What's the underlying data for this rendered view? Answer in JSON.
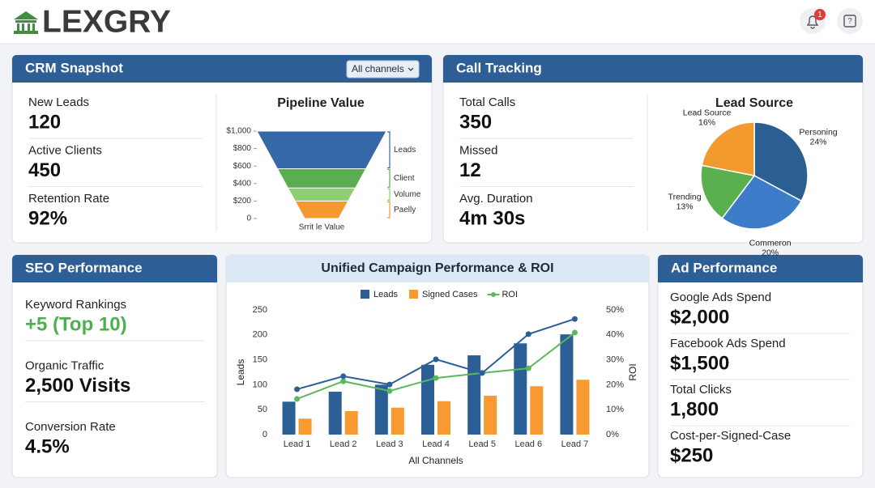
{
  "header": {
    "logo": "LEXGRY",
    "notifications": 1
  },
  "crm": {
    "title": "CRM Snapshot",
    "filter": "All channels",
    "metrics": [
      {
        "label": "New Leads",
        "value": "120"
      },
      {
        "label": "Active Clients",
        "value": "450"
      },
      {
        "label": "Retention Rate",
        "value": "92%"
      }
    ]
  },
  "call_tracking": {
    "title": "Call Tracking",
    "metrics": [
      {
        "label": "Total Calls",
        "value": "350"
      },
      {
        "label": "Missed",
        "value": "12"
      },
      {
        "label": "Avg. Duration",
        "value": "4m 30s"
      }
    ]
  },
  "seo": {
    "title": "SEO Performance",
    "metrics": [
      {
        "label": "Keyword Rankings",
        "value": "+5 (Top 10)"
      },
      {
        "label": "Organic Traffic",
        "value": "2,500 Visits"
      },
      {
        "label": "Conversion Rate",
        "value": "4.5%"
      }
    ]
  },
  "ads": {
    "title": "Ad Performance",
    "metrics": [
      {
        "label": "Google Ads Spend",
        "value": "$2,000"
      },
      {
        "label": "Facebook Ads Spend",
        "value": "$1,500"
      },
      {
        "label": "Total Clicks",
        "value": "1,800"
      },
      {
        "label": "Cost-per-Signed-Case",
        "value": "$250"
      }
    ]
  },
  "chart_data": [
    {
      "type": "funnel",
      "title": "Pipeline Value",
      "xlabel": "Srrit le Value",
      "categories": [
        "Leads",
        "Client",
        "Volume",
        "Paelly"
      ],
      "values": [
        430,
        220,
        150,
        200
      ],
      "colors": [
        "#3568a6",
        "#5aad50",
        "#8fcf73",
        "#f5992f"
      ],
      "ylim": [
        0,
        1000
      ],
      "yticks": [
        0,
        {
          "value": 200,
          "label": "$200"
        },
        {
          "value": 400,
          "label": "$400"
        },
        {
          "value": 600,
          "label": "$600"
        },
        {
          "value": 800,
          "label": "$800"
        },
        {
          "value": 1000,
          "label": "$1,000"
        }
      ]
    },
    {
      "type": "pie",
      "title": "Lead Source",
      "categories": [
        "Personing",
        "Commeron",
        "Trending",
        "Lead Source"
      ],
      "values": [
        24,
        20,
        13,
        16
      ],
      "value_labels": [
        "24%",
        "20%",
        "13%",
        "16%"
      ],
      "colors": [
        "#2c5f91",
        "#3d7cc9",
        "#5aaf4f",
        "#f29a2e"
      ]
    },
    {
      "type": "combo",
      "title": "Unified Campaign Performance & ROI",
      "xlabel": "All Channels",
      "ylabel": "Leads",
      "y2label": "ROI",
      "categories": [
        "Lead 1",
        "Lead 2",
        "Lead 3",
        "Lead 4",
        "Lead 5",
        "Lead 6",
        "Lead 7"
      ],
      "series": [
        {
          "name": "Leads",
          "type": "bar",
          "color": "#2c5f96",
          "values": [
            66,
            86,
            100,
            140,
            159,
            183,
            201
          ]
        },
        {
          "name": "Signed Cases",
          "type": "bar",
          "color": "#f79a32",
          "values": [
            32,
            47,
            54,
            67,
            78,
            97,
            110
          ]
        },
        {
          "name": "ROI",
          "type": "line",
          "axis": "y2",
          "color": "#5cb85c",
          "values": [
            14.3,
            21.4,
            17.5,
            22.7,
            24.7,
            26.6,
            40.9
          ]
        },
        {
          "type": "line",
          "axis": "y2",
          "color": "#2c5f96",
          "values": [
            18.2,
            23.4,
            20.1,
            30.2,
            24.7,
            40.3,
            46.4
          ]
        }
      ],
      "ylim": [
        0,
        250
      ],
      "yticks": [
        0,
        50,
        100,
        150,
        200,
        250
      ],
      "y2lim": [
        0,
        50
      ],
      "y2ticks": [
        {
          "value": 0,
          "label": "0%"
        },
        {
          "value": 10,
          "label": "10%"
        },
        {
          "value": 20,
          "label": "20%"
        },
        {
          "value": 30,
          "label": "30%"
        },
        {
          "value": 40,
          "label": "40%"
        },
        {
          "value": 50,
          "label": "50%"
        }
      ],
      "grid": false
    }
  ]
}
